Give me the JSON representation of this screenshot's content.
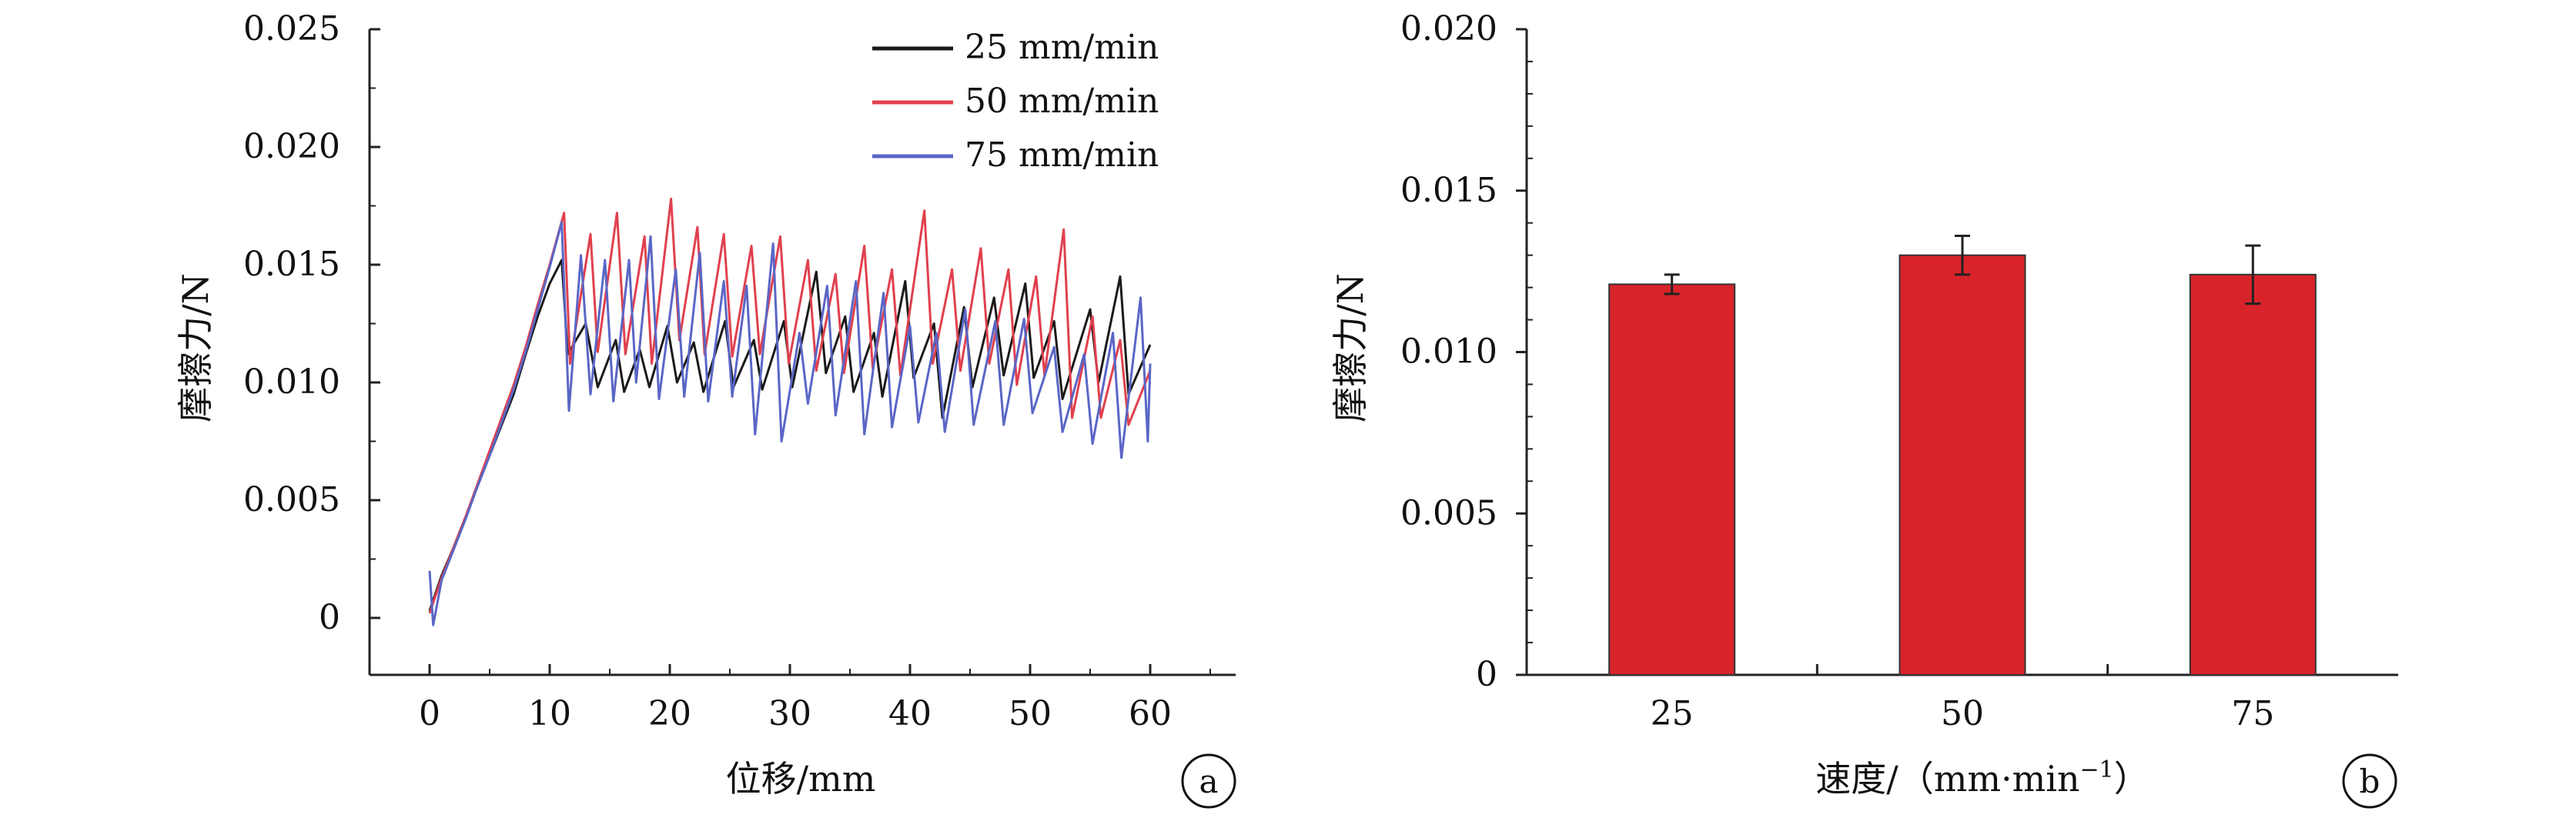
{
  "chart_data": [
    {
      "type": "line",
      "panel_label": "a",
      "xlabel": "位移/mm",
      "ylabel": "摩擦力/N",
      "xlim": [
        -5,
        65
      ],
      "ylim": [
        -0.0025,
        0.025
      ],
      "xticks": [
        0,
        10,
        20,
        30,
        40,
        50,
        60
      ],
      "yticks": [
        0,
        0.005,
        0.01,
        0.015,
        0.02,
        0.025
      ],
      "xtick_labels": [
        "0",
        "10",
        "20",
        "30",
        "40",
        "50",
        "60"
      ],
      "ytick_labels": [
        "0",
        "0.005",
        "0.010",
        "0.015",
        "0.020",
        "0.025"
      ],
      "legend_position": "top-right",
      "series": [
        {
          "name": "25 mm/min",
          "color": "#1a1a1a",
          "points": [
            [
              0,
              0.0003
            ],
            [
              1,
              0.0018
            ],
            [
              2,
              0.003
            ],
            [
              3,
              0.0043
            ],
            [
              4,
              0.0056
            ],
            [
              5,
              0.0069
            ],
            [
              6,
              0.0082
            ],
            [
              7,
              0.0095
            ],
            [
              8,
              0.0112
            ],
            [
              9,
              0.0128
            ],
            [
              10,
              0.0142
            ],
            [
              11,
              0.0152
            ],
            [
              11.5,
              0.0112
            ],
            [
              13,
              0.0125
            ],
            [
              14,
              0.0098
            ],
            [
              15.5,
              0.0118
            ],
            [
              16.2,
              0.0096
            ],
            [
              17.5,
              0.0114
            ],
            [
              18.3,
              0.0098
            ],
            [
              19.8,
              0.0124
            ],
            [
              20.6,
              0.01
            ],
            [
              22,
              0.0117
            ],
            [
              22.8,
              0.0096
            ],
            [
              24.6,
              0.0126
            ],
            [
              25.3,
              0.0098
            ],
            [
              27,
              0.0118
            ],
            [
              27.7,
              0.0097
            ],
            [
              29.5,
              0.0126
            ],
            [
              30.2,
              0.0098
            ],
            [
              32.2,
              0.0147
            ],
            [
              33,
              0.0104
            ],
            [
              34.6,
              0.0128
            ],
            [
              35.3,
              0.0096
            ],
            [
              37,
              0.0121
            ],
            [
              37.7,
              0.0094
            ],
            [
              39.6,
              0.0143
            ],
            [
              40.3,
              0.0102
            ],
            [
              42,
              0.0125
            ],
            [
              42.7,
              0.0085
            ],
            [
              44.5,
              0.0132
            ],
            [
              45.2,
              0.0098
            ],
            [
              47,
              0.0136
            ],
            [
              47.8,
              0.0103
            ],
            [
              49.6,
              0.0142
            ],
            [
              50.3,
              0.0102
            ],
            [
              52,
              0.0126
            ],
            [
              52.7,
              0.0093
            ],
            [
              55,
              0.0131
            ],
            [
              55.7,
              0.01
            ],
            [
              57.5,
              0.0145
            ],
            [
              58.2,
              0.0095
            ],
            [
              60,
              0.0116
            ]
          ]
        },
        {
          "name": "50 mm/min",
          "color": "#e0404e",
          "points": [
            [
              0,
              0.0002
            ],
            [
              1,
              0.0017
            ],
            [
              2,
              0.003
            ],
            [
              3,
              0.0043
            ],
            [
              4,
              0.0057
            ],
            [
              5,
              0.0071
            ],
            [
              6,
              0.0085
            ],
            [
              7,
              0.0099
            ],
            [
              8,
              0.0115
            ],
            [
              9,
              0.0133
            ],
            [
              10,
              0.015
            ],
            [
              11.2,
              0.0172
            ],
            [
              11.7,
              0.0108
            ],
            [
              13.4,
              0.0163
            ],
            [
              14,
              0.0113
            ],
            [
              15.6,
              0.0172
            ],
            [
              16.3,
              0.0112
            ],
            [
              17.9,
              0.0162
            ],
            [
              18.5,
              0.0108
            ],
            [
              20.1,
              0.0178
            ],
            [
              20.8,
              0.0118
            ],
            [
              22.3,
              0.0166
            ],
            [
              22.9,
              0.0112
            ],
            [
              24.5,
              0.0163
            ],
            [
              25.2,
              0.0111
            ],
            [
              26.8,
              0.0158
            ],
            [
              27.5,
              0.0112
            ],
            [
              29.2,
              0.0162
            ],
            [
              29.9,
              0.0108
            ],
            [
              31.5,
              0.0152
            ],
            [
              32.2,
              0.0105
            ],
            [
              33.8,
              0.0146
            ],
            [
              34.5,
              0.0104
            ],
            [
              36.2,
              0.0158
            ],
            [
              36.9,
              0.0106
            ],
            [
              38.5,
              0.0148
            ],
            [
              39.2,
              0.0103
            ],
            [
              41.2,
              0.0173
            ],
            [
              41.9,
              0.0108
            ],
            [
              43.5,
              0.0148
            ],
            [
              44.2,
              0.0105
            ],
            [
              45.9,
              0.0157
            ],
            [
              46.6,
              0.0108
            ],
            [
              48.2,
              0.0148
            ],
            [
              48.9,
              0.0099
            ],
            [
              50.5,
              0.0145
            ],
            [
              51.2,
              0.0103
            ],
            [
              52.8,
              0.0165
            ],
            [
              53.5,
              0.0085
            ],
            [
              55.2,
              0.0128
            ],
            [
              55.9,
              0.0085
            ],
            [
              57.5,
              0.0118
            ],
            [
              58.2,
              0.0082
            ],
            [
              60,
              0.0105
            ]
          ]
        },
        {
          "name": "75 mm/min",
          "color": "#5a66c6",
          "points": [
            [
              0,
              0.002
            ],
            [
              0.3,
              -0.0003
            ],
            [
              1,
              0.0016
            ],
            [
              2,
              0.0029
            ],
            [
              3,
              0.0042
            ],
            [
              4,
              0.0056
            ],
            [
              5,
              0.0069
            ],
            [
              6,
              0.0083
            ],
            [
              7,
              0.0097
            ],
            [
              8,
              0.0113
            ],
            [
              9,
              0.0131
            ],
            [
              10,
              0.0149
            ],
            [
              11,
              0.0168
            ],
            [
              11.6,
              0.0088
            ],
            [
              12.6,
              0.0154
            ],
            [
              13.4,
              0.0095
            ],
            [
              14.6,
              0.0152
            ],
            [
              15.3,
              0.0092
            ],
            [
              16.6,
              0.0152
            ],
            [
              17.2,
              0.01
            ],
            [
              18.4,
              0.0162
            ],
            [
              19.1,
              0.0093
            ],
            [
              20.5,
              0.0148
            ],
            [
              21.2,
              0.0094
            ],
            [
              22.5,
              0.0155
            ],
            [
              23.2,
              0.0092
            ],
            [
              24.5,
              0.0143
            ],
            [
              25.2,
              0.0094
            ],
            [
              26.4,
              0.0141
            ],
            [
              27.1,
              0.0078
            ],
            [
              28.6,
              0.0159
            ],
            [
              29.3,
              0.0075
            ],
            [
              30.8,
              0.0121
            ],
            [
              31.5,
              0.0091
            ],
            [
              33.1,
              0.0141
            ],
            [
              33.8,
              0.0086
            ],
            [
              35.5,
              0.0143
            ],
            [
              36.2,
              0.0078
            ],
            [
              37.8,
              0.0138
            ],
            [
              38.5,
              0.0081
            ],
            [
              40,
              0.0124
            ],
            [
              40.7,
              0.0083
            ],
            [
              42.2,
              0.0121
            ],
            [
              42.9,
              0.0079
            ],
            [
              44.6,
              0.0131
            ],
            [
              45.3,
              0.0082
            ],
            [
              47.1,
              0.0126
            ],
            [
              47.8,
              0.0082
            ],
            [
              49.5,
              0.0127
            ],
            [
              50.2,
              0.0087
            ],
            [
              52,
              0.0115
            ],
            [
              52.7,
              0.0079
            ],
            [
              54.5,
              0.0112
            ],
            [
              55.2,
              0.0074
            ],
            [
              56.9,
              0.0121
            ],
            [
              57.6,
              0.0068
            ],
            [
              59.2,
              0.0136
            ],
            [
              59.8,
              0.0075
            ],
            [
              60,
              0.0108
            ]
          ]
        }
      ]
    },
    {
      "type": "bar",
      "panel_label": "b",
      "xlabel": "速度/（mm·min",
      "xlabel_sup": "−1",
      "xlabel_close": "）",
      "ylabel": "摩擦力/N",
      "ylim": [
        0,
        0.02
      ],
      "yticks": [
        0,
        0.005,
        0.01,
        0.015,
        0.02
      ],
      "ytick_labels": [
        "0",
        "0.005",
        "0.010",
        "0.015",
        "0.020"
      ],
      "categories": [
        "25",
        "50",
        "75"
      ],
      "values": [
        0.0121,
        0.013,
        0.0124
      ],
      "errors": [
        0.0003,
        0.0006,
        0.0009
      ],
      "bar_color": "#d9232a"
    }
  ]
}
